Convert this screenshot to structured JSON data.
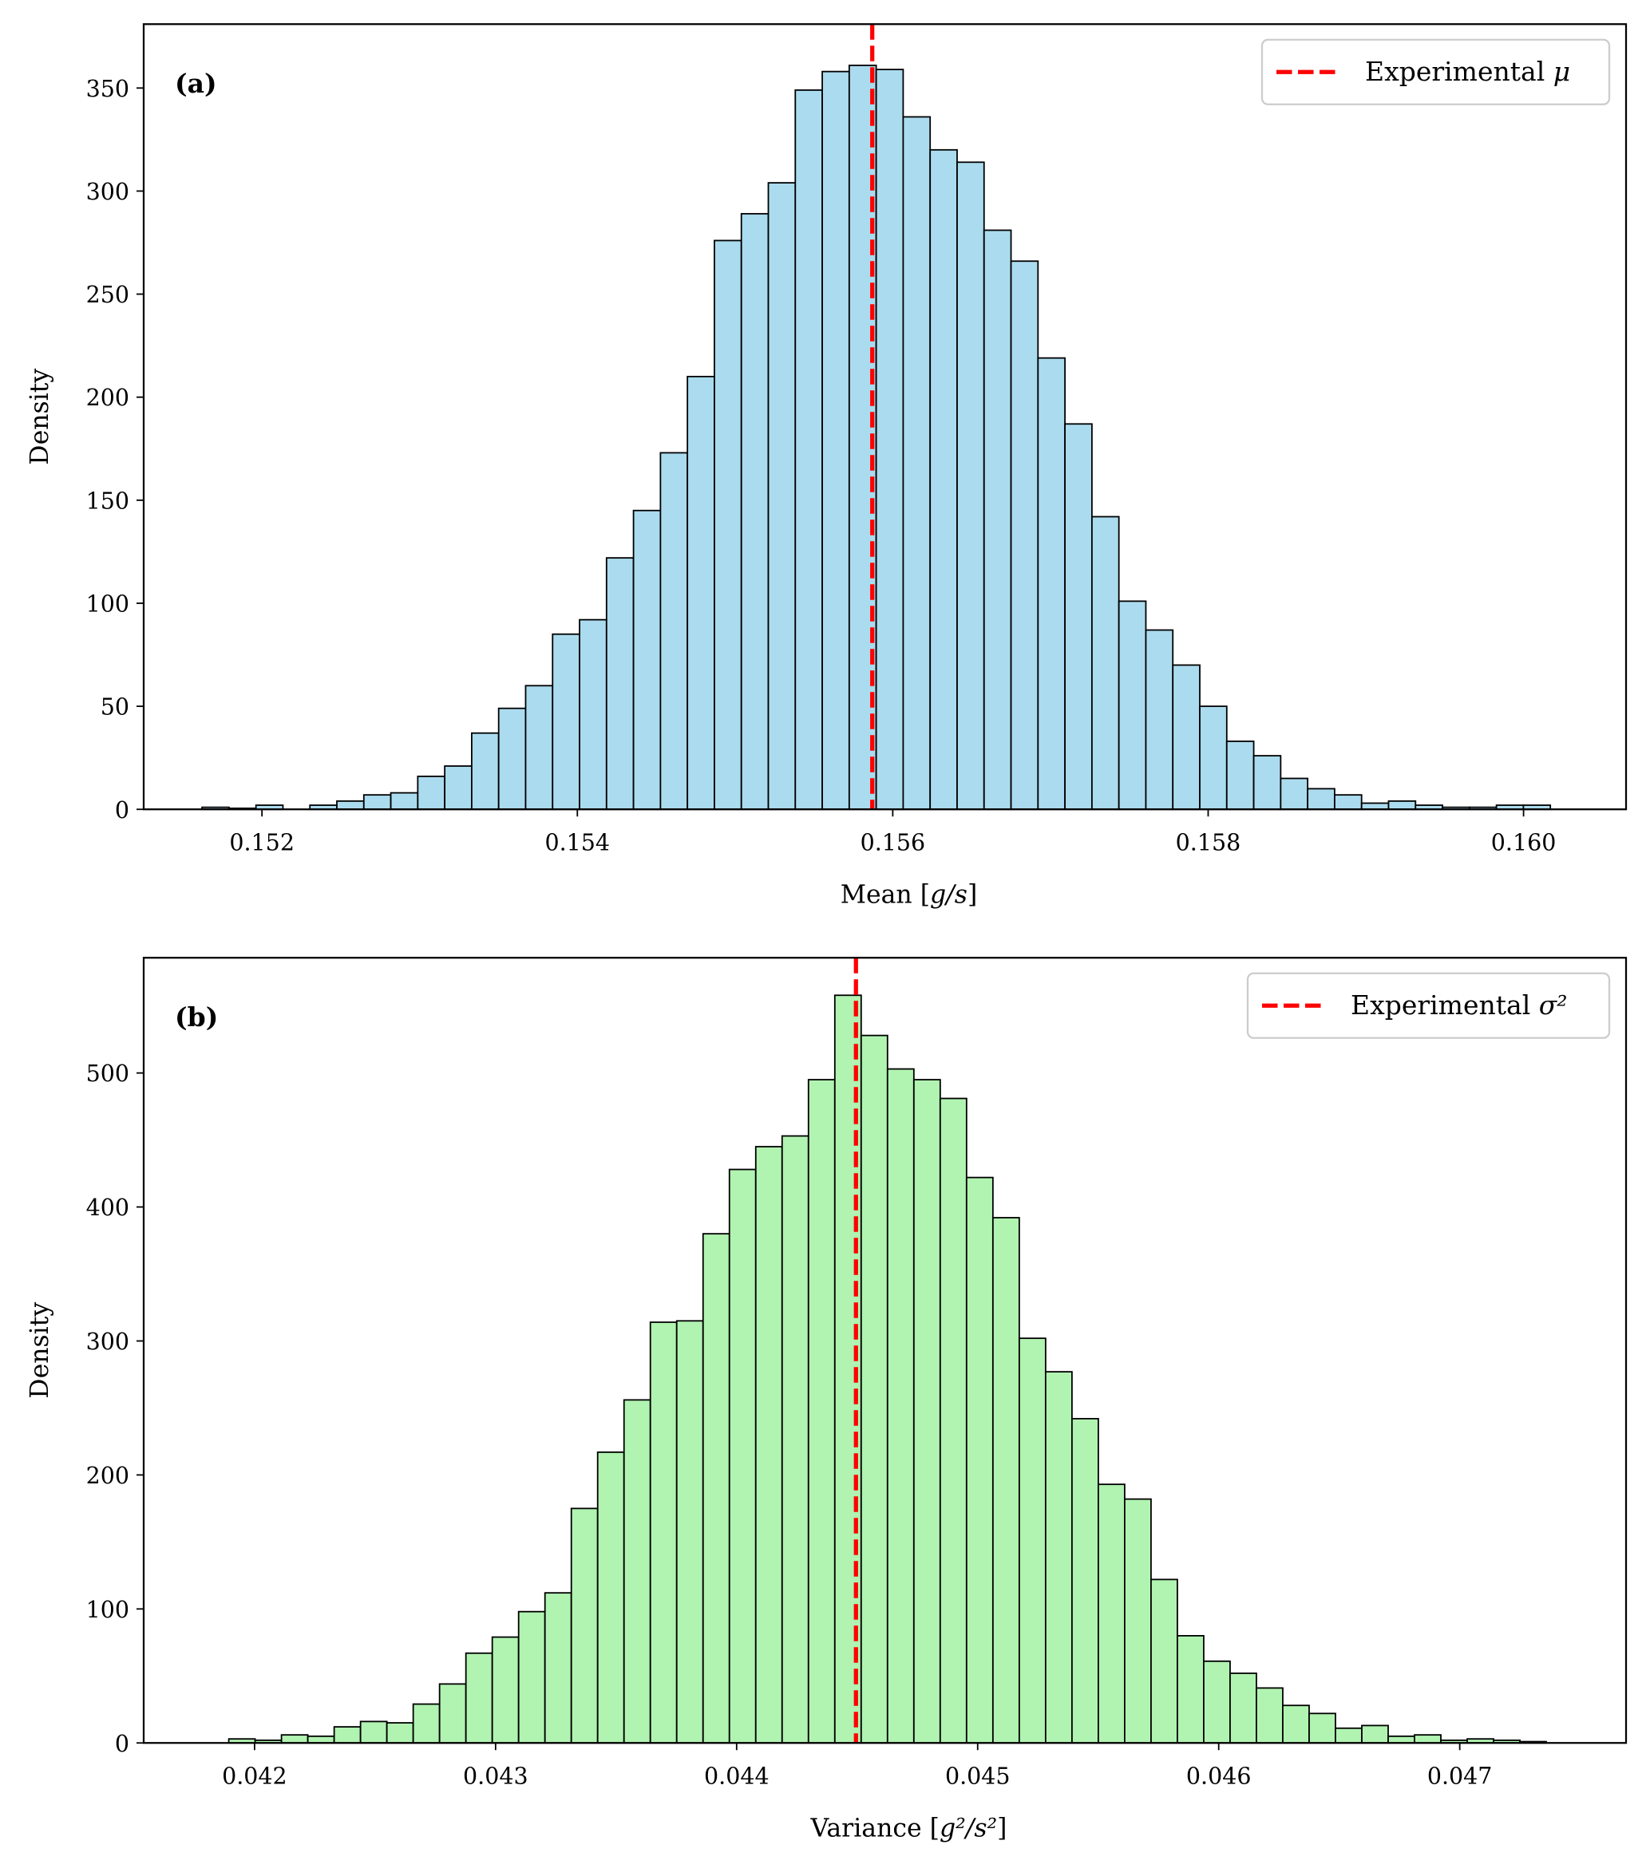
{
  "chart_data": [
    {
      "type": "bar",
      "panel_label": "(a)",
      "xlabel": "Mean [g/s]",
      "xlabel_parts": {
        "prefix": "Mean [",
        "math": "g/s",
        "suffix": "]"
      },
      "ylabel": "Density",
      "xlim": [
        0.15125,
        0.16065
      ],
      "ylim": [
        0,
        381
      ],
      "xticks": [
        0.152,
        0.154,
        0.156,
        0.158,
        0.16
      ],
      "xtick_labels": [
        "0.152",
        "0.154",
        "0.156",
        "0.158",
        "0.160"
      ],
      "yticks": [
        0,
        50,
        100,
        150,
        200,
        250,
        300,
        350
      ],
      "yticks_labels": [
        "0",
        "50",
        "100",
        "150",
        "200",
        "250",
        "300",
        "350"
      ],
      "bin_start": 0.15162,
      "bin_end": 0.16017,
      "values": [
        1,
        0.5,
        2,
        0,
        2,
        4,
        7,
        8,
        16,
        21,
        37,
        49,
        60,
        85,
        92,
        122,
        145,
        173,
        210,
        276,
        289,
        304,
        349,
        358,
        361,
        359,
        336,
        320,
        314,
        281,
        266,
        219,
        187,
        142,
        101,
        87,
        70,
        50,
        33,
        26,
        15,
        10,
        7,
        3,
        4,
        2,
        1,
        1,
        2,
        2
      ],
      "bar_color": "#abdbee",
      "edge_color": "#000000",
      "reference_line": {
        "value": 0.15587,
        "label": "Experimental μ",
        "label_text": "Experimental ",
        "label_math": "μ",
        "color": "#ff0000",
        "style": "dashed"
      },
      "legend_position": "top-right",
      "grid": false
    },
    {
      "type": "bar",
      "panel_label": "(b)",
      "xlabel": "Variance [g²/s²]",
      "xlabel_parts": {
        "prefix": "Variance [",
        "math": "g²/s²",
        "suffix": "]"
      },
      "ylabel": "Density",
      "xlim": [
        0.04154,
        0.04769
      ],
      "ylim": [
        0,
        586
      ],
      "xticks": [
        0.042,
        0.043,
        0.044,
        0.045,
        0.046,
        0.047
      ],
      "xtick_labels": [
        "0.042",
        "0.043",
        "0.044",
        "0.045",
        "0.046",
        "0.047"
      ],
      "yticks": [
        0,
        100,
        200,
        300,
        400,
        500
      ],
      "yticks_labels": [
        "0",
        "100",
        "200",
        "300",
        "400",
        "500"
      ],
      "bin_start": 0.041893,
      "bin_end": 0.047359,
      "values": [
        3,
        2,
        6,
        5,
        12,
        16,
        15,
        29,
        44,
        67,
        79,
        98,
        112,
        175,
        217,
        256,
        314,
        315,
        380,
        428,
        445,
        453,
        495,
        558,
        528,
        503,
        495,
        481,
        422,
        392,
        302,
        277,
        242,
        193,
        182,
        122,
        80,
        61,
        52,
        41,
        28,
        22,
        11,
        13,
        5,
        6,
        2,
        3,
        2,
        1
      ],
      "bar_color": "#b1f3b1",
      "edge_color": "#000000",
      "reference_line": {
        "value": 0.044495,
        "label": "Experimental σ²",
        "label_text": "Experimental ",
        "label_math": "σ²",
        "color": "#ff0000",
        "style": "dashed"
      },
      "legend_position": "top-right",
      "grid": false
    }
  ]
}
